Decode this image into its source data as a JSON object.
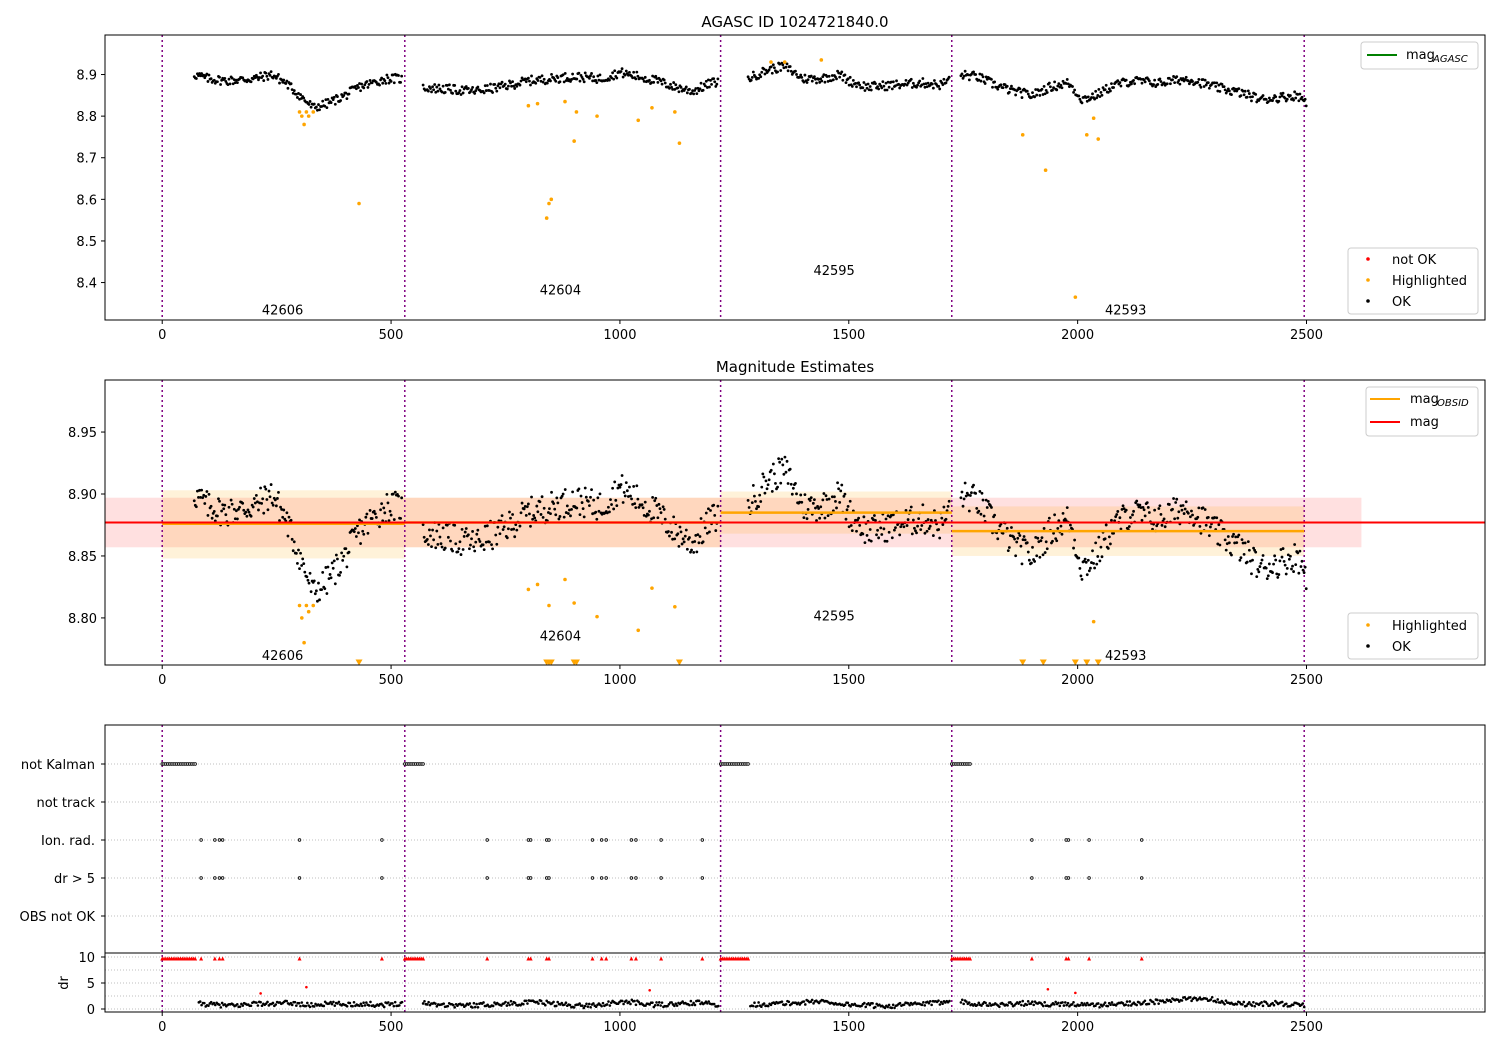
{
  "chart_data": [
    {
      "type": "scatter",
      "id": "p1",
      "title": "AGASC ID 1024721840.0",
      "xlim": [
        -125,
        2890
      ],
      "ylim": [
        8.31,
        8.995
      ],
      "xticks": [
        0,
        500,
        1000,
        1500,
        2000,
        2500
      ],
      "yticks": [
        8.4,
        8.5,
        8.6,
        8.7,
        8.8,
        8.9
      ],
      "ytick_labels": [
        "8.4",
        "8.5",
        "8.6",
        "8.7",
        "8.8",
        "8.9"
      ],
      "legend_top": {
        "location": "top-right",
        "entries": [
          {
            "label": "mag",
            "sub": "AGASC",
            "color": "#008000"
          }
        ]
      },
      "legend_bottom": {
        "location": "bottom-right",
        "entries": [
          {
            "label": "not OK",
            "color": "#ff0000"
          },
          {
            "label": "Highlighted",
            "color": "#ffa500"
          },
          {
            "label": "OK",
            "color": "#000000"
          }
        ]
      },
      "obsid_labels": [
        {
          "text": "42606",
          "x": 263,
          "y": 8.335
        },
        {
          "text": "42604",
          "x": 870,
          "y": 8.383
        },
        {
          "text": "42595",
          "x": 1468,
          "y": 8.43
        },
        {
          "text": "42593",
          "x": 2105,
          "y": 8.335
        }
      ],
      "series": [
        {
          "name": "OK",
          "color": "#000000",
          "x": [
            70,
            100,
            140,
            200,
            240,
            270,
            290,
            310,
            330,
            360,
            400,
            430,
            460,
            490,
            520,
            560,
            620,
            680,
            740,
            800,
            850,
            900,
            960,
            1000,
            1040,
            1080,
            1120,
            1160,
            1200,
            1280,
            1320,
            1360,
            1400,
            1440,
            1480,
            1500,
            1540,
            1600,
            1660,
            1700,
            1740,
            1780,
            1820,
            1860,
            1900,
            1940,
            1980,
            2010,
            2040,
            2080,
            2120,
            2180,
            2240,
            2300,
            2360,
            2400,
            2440,
            2480,
            2500
          ],
          "y": [
            8.9,
            8.89,
            8.885,
            8.89,
            8.9,
            8.88,
            8.86,
            8.84,
            8.82,
            8.83,
            8.85,
            8.87,
            8.88,
            8.89,
            8.89,
            8.87,
            8.865,
            8.86,
            8.87,
            8.885,
            8.89,
            8.895,
            8.89,
            8.905,
            8.895,
            8.885,
            8.87,
            8.86,
            8.88,
            8.89,
            8.91,
            8.92,
            8.89,
            8.89,
            8.9,
            8.885,
            8.87,
            8.875,
            8.88,
            8.875,
            8.9,
            8.895,
            8.875,
            8.86,
            8.85,
            8.87,
            8.88,
            8.84,
            8.85,
            8.875,
            8.885,
            8.88,
            8.89,
            8.87,
            8.855,
            8.84,
            8.845,
            8.85,
            8.835
          ]
        },
        {
          "name": "Highlighted",
          "color": "#ffa500",
          "x": [
            300,
            305,
            310,
            315,
            320,
            330,
            430,
            800,
            820,
            840,
            845,
            850,
            880,
            900,
            905,
            950,
            1040,
            1070,
            1120,
            1130,
            1330,
            1360,
            1440,
            1880,
            1930,
            1995,
            2020,
            2035,
            2045
          ],
          "y": [
            8.81,
            8.8,
            8.78,
            8.81,
            8.8,
            8.81,
            8.59,
            8.825,
            8.83,
            8.555,
            8.59,
            8.6,
            8.835,
            8.74,
            8.81,
            8.8,
            8.79,
            8.82,
            8.81,
            8.735,
            8.93,
            8.93,
            8.935,
            8.755,
            8.67,
            8.365,
            8.755,
            8.795,
            8.745
          ]
        }
      ]
    },
    {
      "type": "scatter",
      "id": "p2",
      "title": "Magnitude Estimates",
      "xlim": [
        -125,
        2890
      ],
      "ylim": [
        8.762,
        8.992
      ],
      "xticks": [
        0,
        500,
        1000,
        1500,
        2000,
        2500
      ],
      "yticks": [
        8.8,
        8.85,
        8.9,
        8.95
      ],
      "ytick_labels": [
        "8.80",
        "8.85",
        "8.90",
        "8.95"
      ],
      "mag_line": 8.877,
      "mag_band": [
        8.857,
        8.897
      ],
      "segments": [
        {
          "x0": 0,
          "x1": 530,
          "mag": 8.876,
          "band": [
            8.848,
            8.903
          ]
        },
        {
          "x0": 530,
          "x1": 1220,
          "mag": 8.877,
          "band": [
            8.857,
            8.897
          ]
        },
        {
          "x0": 1220,
          "x1": 1725,
          "mag": 8.885,
          "band": [
            8.868,
            8.902
          ]
        },
        {
          "x0": 1725,
          "x1": 2495,
          "mag": 8.87,
          "band": [
            8.85,
            8.89
          ]
        }
      ],
      "legend_top": {
        "location": "top-right",
        "entries": [
          {
            "label": "mag",
            "sub": "OBSID",
            "color": "#ffa500"
          },
          {
            "label": "mag",
            "sub": "",
            "color": "#ff0000"
          }
        ]
      },
      "legend_bottom": {
        "location": "bottom-right",
        "entries": [
          {
            "label": "Highlighted",
            "color": "#ffa500"
          },
          {
            "label": "OK",
            "color": "#000000"
          }
        ]
      },
      "obsid_labels": [
        {
          "text": "42606",
          "x": 263,
          "y": 8.77
        },
        {
          "text": "42604",
          "x": 870,
          "y": 8.786
        },
        {
          "text": "42595",
          "x": 1468,
          "y": 8.802
        },
        {
          "text": "42593",
          "x": 2105,
          "y": 8.77
        }
      ],
      "series": [
        {
          "name": "OK",
          "color": "#000000",
          "x": [
            70,
            100,
            140,
            200,
            240,
            270,
            290,
            310,
            330,
            360,
            400,
            430,
            460,
            490,
            520,
            560,
            620,
            680,
            740,
            800,
            850,
            900,
            960,
            1000,
            1040,
            1080,
            1120,
            1160,
            1200,
            1280,
            1320,
            1360,
            1400,
            1440,
            1480,
            1500,
            1540,
            1600,
            1660,
            1700,
            1740,
            1780,
            1820,
            1860,
            1900,
            1940,
            1980,
            2010,
            2040,
            2080,
            2120,
            2180,
            2240,
            2300,
            2360,
            2400,
            2440,
            2480,
            2500
          ],
          "y": [
            8.9,
            8.89,
            8.885,
            8.89,
            8.9,
            8.88,
            8.86,
            8.84,
            8.82,
            8.83,
            8.85,
            8.87,
            8.88,
            8.89,
            8.89,
            8.87,
            8.865,
            8.86,
            8.87,
            8.885,
            8.89,
            8.895,
            8.89,
            8.905,
            8.895,
            8.885,
            8.87,
            8.86,
            8.88,
            8.89,
            8.91,
            8.92,
            8.89,
            8.89,
            8.9,
            8.885,
            8.87,
            8.875,
            8.88,
            8.875,
            8.9,
            8.895,
            8.875,
            8.86,
            8.85,
            8.87,
            8.88,
            8.84,
            8.85,
            8.875,
            8.885,
            8.88,
            8.89,
            8.87,
            8.855,
            8.84,
            8.845,
            8.85,
            8.835
          ]
        },
        {
          "name": "Highlighted",
          "color": "#ffa500",
          "x": [
            300,
            305,
            310,
            315,
            320,
            330,
            800,
            820,
            845,
            880,
            900,
            950,
            1040,
            1070,
            1120,
            2035
          ],
          "y": [
            8.81,
            8.8,
            8.78,
            8.81,
            8.805,
            8.81,
            8.823,
            8.827,
            8.81,
            8.831,
            8.812,
            8.801,
            8.79,
            8.824,
            8.809,
            8.797
          ]
        },
        {
          "name": "Highlighted (off-scale)",
          "color": "#ffa500",
          "marker": "triangle-down",
          "x": [
            430,
            840,
            845,
            850,
            900,
            905,
            1130,
            1880,
            1925,
            1995,
            2020,
            2045
          ],
          "y": [
            8.764,
            8.764,
            8.764,
            8.764,
            8.764,
            8.764,
            8.764,
            8.764,
            8.764,
            8.764,
            8.764,
            8.764
          ]
        }
      ]
    },
    {
      "type": "scatter",
      "id": "p3",
      "xlim": [
        -125,
        2890
      ],
      "rows": [
        "not Kalman",
        "not track",
        "Ion. rad.",
        "dr > 5",
        "OBS not OK"
      ],
      "ylim_dr": [
        -0.6,
        10.7
      ],
      "yticks_dr": [
        0,
        5,
        10
      ],
      "ylabel_dr": "dr",
      "xticks": [
        0,
        500,
        1000,
        1500,
        2000,
        2500
      ],
      "flag_runs": [
        {
          "row": "not Kalman",
          "x0": 0,
          "x1": 75
        },
        {
          "row": "not Kalman",
          "x0": 530,
          "x1": 570
        },
        {
          "row": "not Kalman",
          "x0": 1220,
          "x1": 1280
        },
        {
          "row": "not Kalman",
          "x0": 1725,
          "x1": 1765
        }
      ],
      "ion_rad_x": [
        85,
        115,
        125,
        132,
        300,
        480,
        710,
        800,
        805,
        840,
        845,
        940,
        960,
        970,
        1025,
        1035,
        1090,
        1180,
        1900,
        1975,
        1980,
        2025,
        2140
      ],
      "dr_gt5_x": [
        85,
        115,
        125,
        132,
        300,
        480,
        710,
        800,
        805,
        840,
        845,
        940,
        960,
        970,
        1025,
        1035,
        1090,
        1180,
        1900,
        1975,
        1980,
        2025,
        2140
      ],
      "dr_series": {
        "x": [
          80,
          120,
          160,
          200,
          240,
          280,
          320,
          360,
          400,
          440,
          480,
          520,
          570,
          620,
          670,
          720,
          770,
          820,
          870,
          920,
          970,
          1020,
          1070,
          1120,
          1170,
          1215,
          1290,
          1340,
          1390,
          1440,
          1490,
          1540,
          1590,
          1640,
          1690,
          1720,
          1780,
          1830,
          1880,
          1930,
          1980,
          2030,
          2080,
          2130,
          2180,
          2230,
          2280,
          2330,
          2380,
          2430,
          2480,
          2495
        ],
        "y": [
          1,
          0.8,
          0.6,
          1.1,
          0.9,
          1.2,
          0.7,
          1,
          0.9,
          1,
          0.8,
          1.1,
          1.2,
          0.8,
          0.7,
          0.9,
          1.1,
          1.3,
          0.9,
          0.6,
          1,
          1.4,
          0.8,
          0.9,
          1.2,
          0.9,
          0.8,
          1,
          1.2,
          1.5,
          0.9,
          0.7,
          0.6,
          0.9,
          1.1,
          1.8,
          1,
          0.8,
          1.1,
          0.9,
          1,
          0.7,
          0.9,
          1.2,
          1.4,
          1.8,
          2.1,
          1.2,
          0.9,
          1.1,
          0.8,
          0.6
        ]
      },
      "dr_red_x": [
        215,
        315,
        1065,
        1935,
        1995
      ],
      "dr_red_y": [
        3,
        4.2,
        3.6,
        3.8,
        3.1
      ]
    }
  ],
  "obsid_boundaries": [
    0,
    530,
    1220,
    1725,
    2495
  ]
}
